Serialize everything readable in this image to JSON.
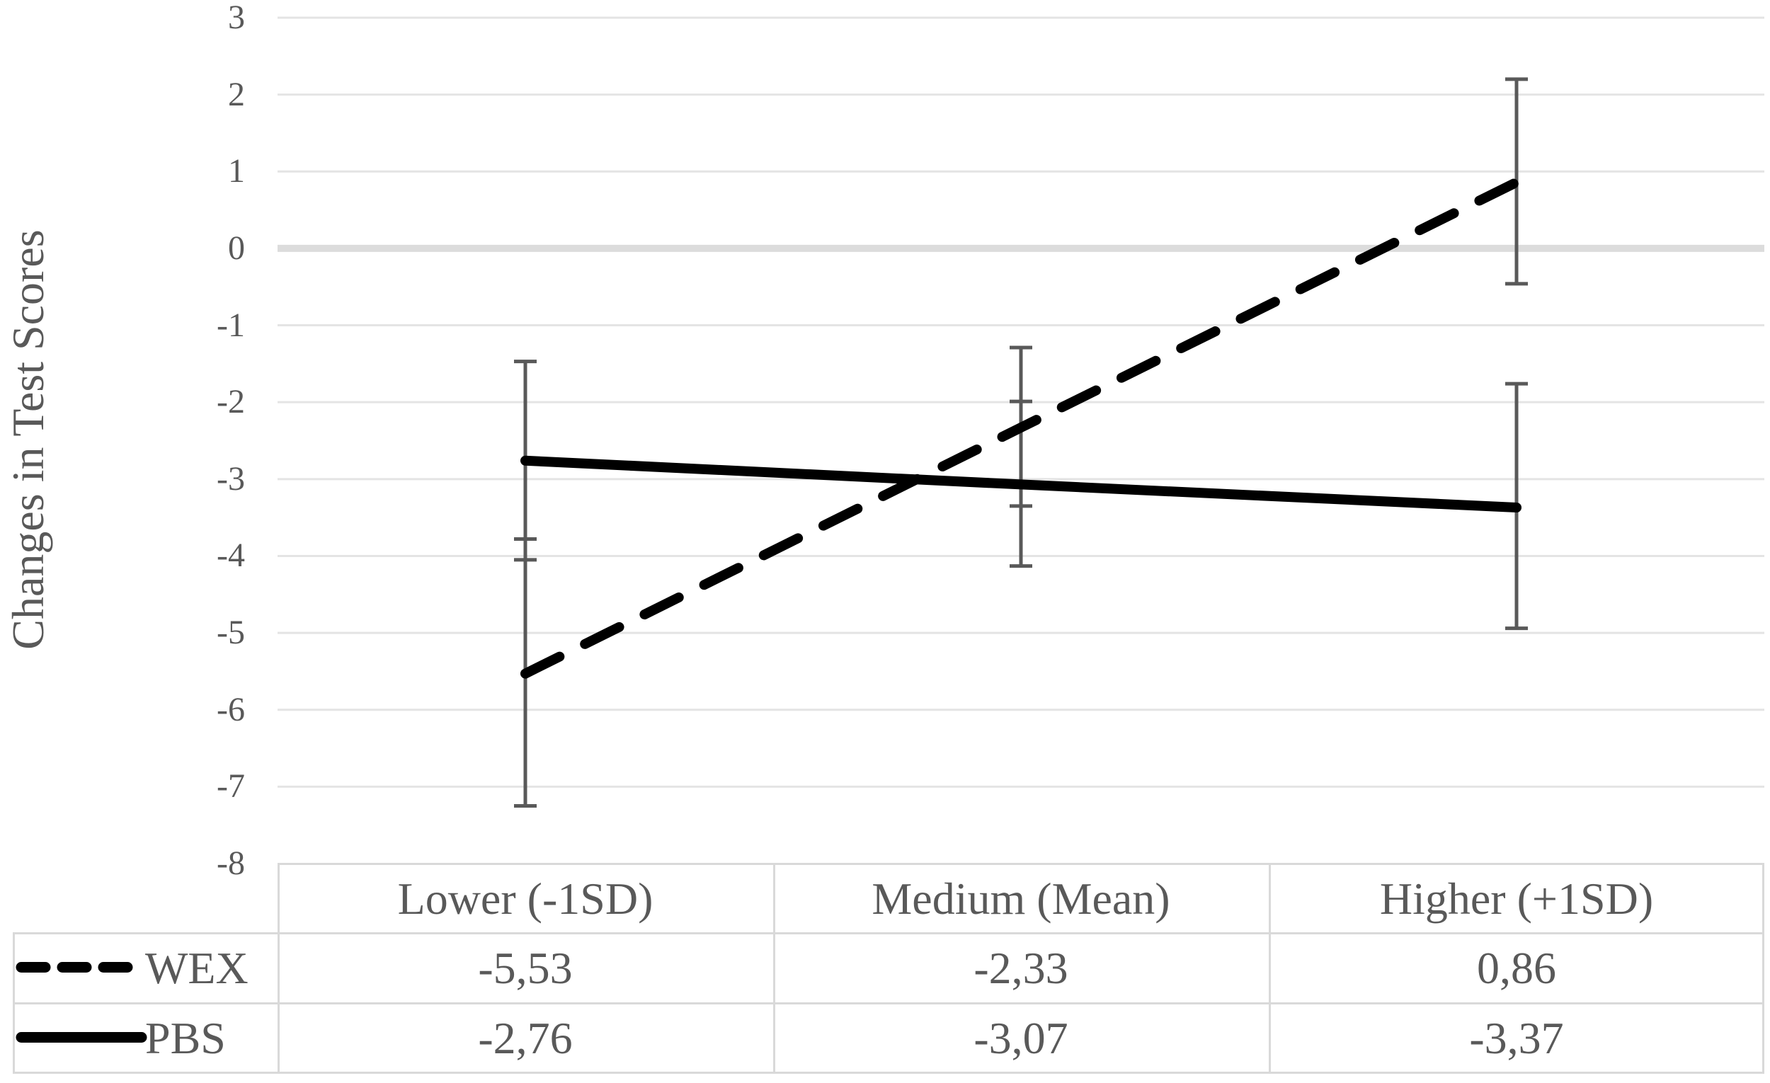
{
  "chart_data": {
    "type": "line",
    "ylabel": "Changes in Test Scores",
    "xlabel": "",
    "categories": [
      "Lower (-1SD)",
      "Medium (Mean)",
      "Higher (+1SD)"
    ],
    "series": [
      {
        "name": "WEX",
        "style": "dashed",
        "color": "#000000",
        "values": [
          -5.53,
          -2.33,
          0.86
        ],
        "display_values": [
          "-5,53",
          "-2,33",
          "0,86"
        ],
        "ci_low": [
          -7.25,
          -3.35,
          -0.46
        ],
        "ci_high": [
          -3.78,
          -1.29,
          2.2
        ]
      },
      {
        "name": "PBS",
        "style": "solid",
        "color": "#000000",
        "values": [
          -2.76,
          -3.07,
          -3.37
        ],
        "display_values": [
          "-2,76",
          "-3,07",
          "-3,37"
        ],
        "ci_low": [
          -4.05,
          -4.13,
          -4.94
        ],
        "ci_high": [
          -1.47,
          -1.99,
          -1.76
        ]
      }
    ],
    "ylim": [
      -8,
      3
    ],
    "yticks": [
      3,
      2,
      1,
      0,
      -1,
      -2,
      -3,
      -4,
      -5,
      -6,
      -7,
      -8
    ],
    "grid": "horizontal",
    "error_bars": true,
    "legend_position": "data-table-left",
    "colors": {
      "text": "#595959",
      "grid": "#E4E4E4",
      "zero_line": "#DCDCDC",
      "table_border": "#D9D9D9",
      "error_bar": "#595959",
      "background": "#ffffff"
    }
  }
}
